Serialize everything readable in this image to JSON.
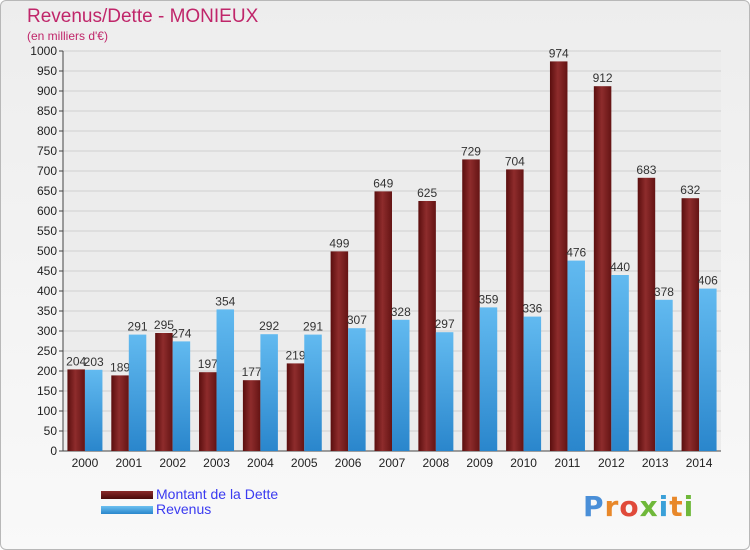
{
  "chart_data": {
    "type": "bar",
    "title": "Revenus/Dette - MONIEUX",
    "subtitle": "(en milliers d'€)",
    "xlabel": "",
    "ylabel": "",
    "ylim": [
      0,
      1000
    ],
    "ytick_step": 50,
    "grid": true,
    "legend_position": "bottom-left",
    "categories": [
      "2000",
      "2001",
      "2002",
      "2003",
      "2004",
      "2005",
      "2006",
      "2007",
      "2008",
      "2009",
      "2010",
      "2011",
      "2012",
      "2013",
      "2014"
    ],
    "series": [
      {
        "name": "Montant de la Dette",
        "color": "#7a1c1c",
        "values": [
          204,
          189,
          295,
          197,
          177,
          219,
          499,
          649,
          625,
          729,
          704,
          974,
          912,
          683,
          632
        ]
      },
      {
        "name": "Revenus",
        "color": "#3a9ee0",
        "values": [
          203,
          291,
          274,
          354,
          292,
          291,
          307,
          328,
          297,
          359,
          336,
          476,
          440,
          378,
          406
        ]
      }
    ]
  },
  "logo": {
    "text": "Proxiti",
    "colors": [
      "#4a8fd8",
      "#e8882a",
      "#e04a3a",
      "#6fb83a",
      "#3aa0d8",
      "#e8882a",
      "#6fb83a"
    ]
  }
}
